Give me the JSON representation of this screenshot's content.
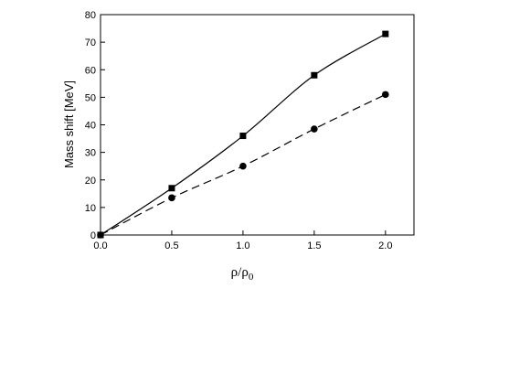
{
  "chart_data": {
    "type": "line",
    "title": "",
    "xlabel": "ρ/ρ",
    "xlabel_subscript": "0",
    "ylabel": "Mass shift [MeV]",
    "xlim": [
      0.0,
      2.2
    ],
    "ylim": [
      0,
      80
    ],
    "x_ticks": [
      "0.0",
      "0.5",
      "1.0",
      "1.5",
      "2.0"
    ],
    "y_ticks": [
      "0",
      "10",
      "20",
      "30",
      "40",
      "50",
      "60",
      "70",
      "80"
    ],
    "grid": false,
    "legend": "none",
    "series": [
      {
        "marker": "square",
        "line_style": "solid",
        "color": "#000000",
        "x": [
          0.0,
          0.5,
          1.0,
          1.5,
          2.0
        ],
        "y": [
          0,
          17,
          36,
          58,
          73
        ]
      },
      {
        "marker": "circle",
        "line_style": "dashed",
        "color": "#000000",
        "x": [
          0.0,
          0.5,
          1.0,
          1.5,
          2.0
        ],
        "y": [
          0,
          13.5,
          25,
          38.5,
          51
        ]
      }
    ]
  }
}
